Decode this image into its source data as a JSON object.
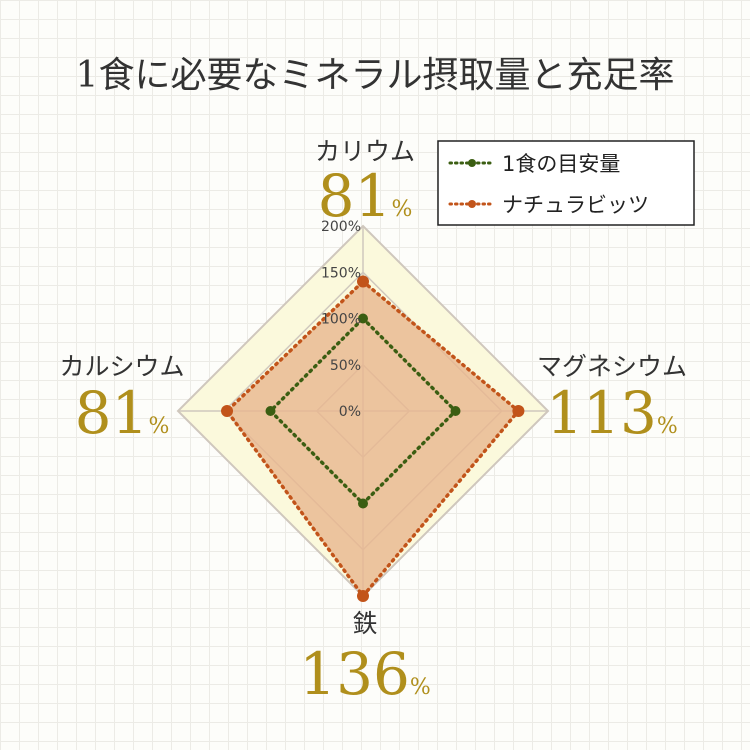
{
  "title": "1食に必要なミネラル摂取量と充足率",
  "colors": {
    "gold": "#b08f1c",
    "outer_fill": "#fbf9dc",
    "axis": "#cfc7bd",
    "series_1": "#3b5e12",
    "series_2": "#c2541a",
    "series_2_fill": "#e8b78f"
  },
  "chart_data": {
    "type": "radar",
    "title": "1食に必要なミネラル摂取量と充足率",
    "categories": [
      "カリウム",
      "マグネシウム",
      "鉄",
      "カルシウム"
    ],
    "percent_labels": [
      "81",
      "113",
      "136",
      "81"
    ],
    "percent_unit": "%",
    "rlim": [
      0,
      200
    ],
    "ticks": [
      {
        "value": 0,
        "label": "0%"
      },
      {
        "value": 50,
        "label": "50%"
      },
      {
        "value": 100,
        "label": "100%"
      },
      {
        "value": 150,
        "label": "150%"
      },
      {
        "value": 200,
        "label": "200%"
      }
    ],
    "series": [
      {
        "name": "1食の目安量",
        "values": [
          100,
          100,
          100,
          100
        ]
      },
      {
        "name": "ナチュラビッツ",
        "values": [
          140,
          168,
          200,
          147
        ]
      }
    ],
    "legend_position": "top-right"
  }
}
